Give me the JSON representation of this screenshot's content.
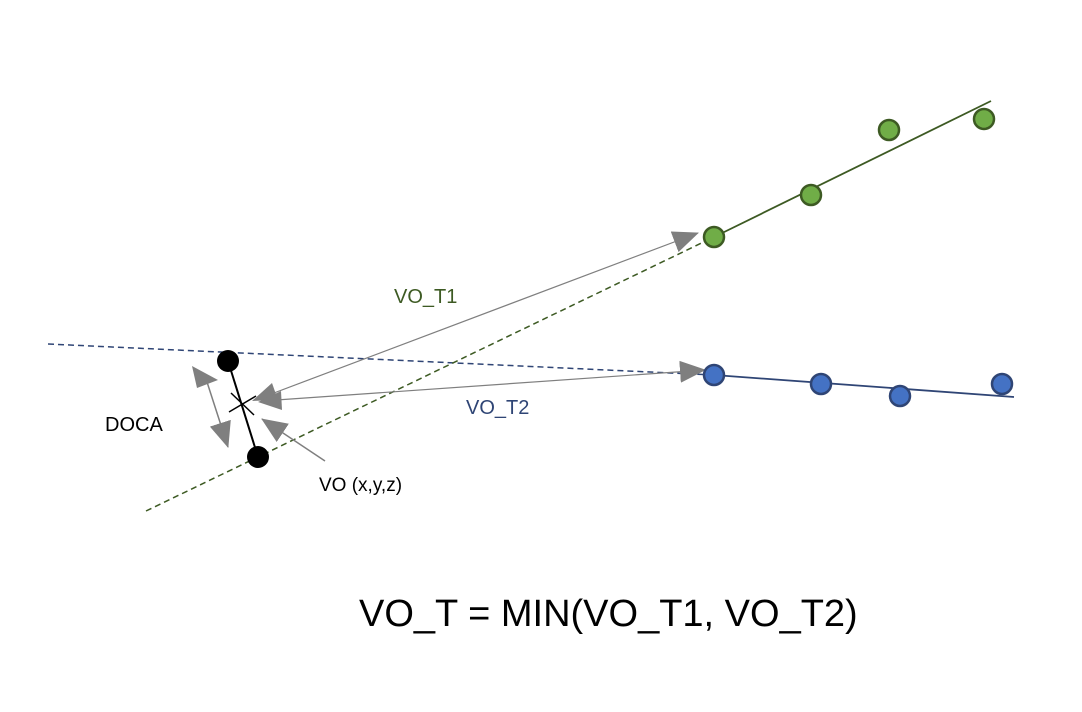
{
  "labels": {
    "vo_t1": "VO_T1",
    "vo_t2": "VO_T2",
    "doca": "DOCA",
    "vo": "VO (x,y,z)",
    "formula": "VO_T = MIN(VO_T1, VO_T2)"
  },
  "colors": {
    "track1": "#3d5a23",
    "track1_hit": "#70ad47",
    "track2": "#2f4575",
    "track2_hit": "#4472c4",
    "arrow": "#7f7f7f",
    "vertex_point": "#000000",
    "vo_t1_text": "#3d5a23",
    "vo_t2_text": "#2f4575",
    "text": "#000000"
  }
}
